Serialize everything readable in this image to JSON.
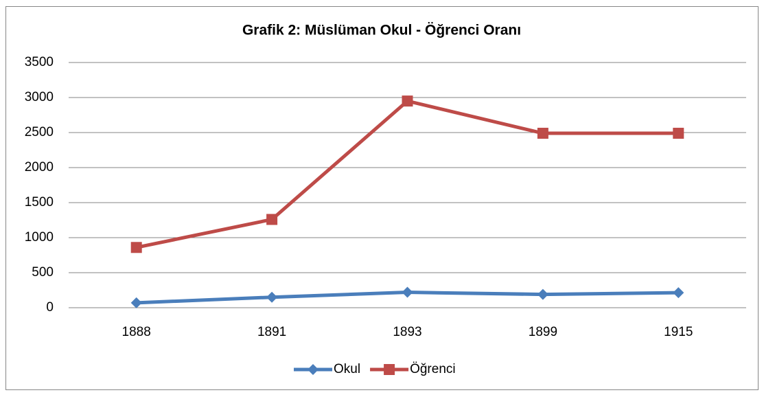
{
  "chart_data": {
    "type": "line",
    "title": "Grafik 2: Müslüman Okul - Öğrenci Oranı",
    "categories": [
      "1888",
      "1891",
      "1893",
      "1899",
      "1915"
    ],
    "series": [
      {
        "name": "Okul",
        "color": "#4a7ebb",
        "marker": "diamond",
        "values": [
          70,
          150,
          220,
          190,
          215
        ]
      },
      {
        "name": "Öğrenci",
        "color": "#be4b48",
        "marker": "square",
        "values": [
          860,
          1260,
          2950,
          2490,
          2490
        ]
      }
    ],
    "ylim": [
      0,
      3500
    ],
    "yticks": [
      0,
      500,
      1000,
      1500,
      2000,
      2500,
      3000,
      3500
    ],
    "grid": true,
    "legend": "bottom"
  }
}
